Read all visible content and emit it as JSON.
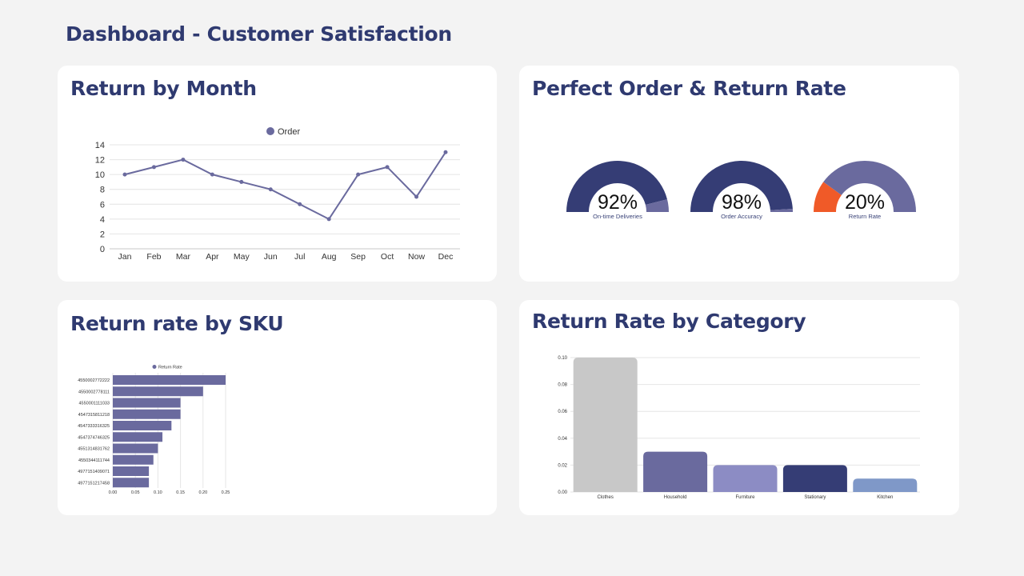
{
  "page": {
    "title": "Dashboard - Customer Satisfaction"
  },
  "colors": {
    "title": "#2f3a70",
    "line": "#6a6a9e",
    "sku_bar": "#6a6a9e",
    "gauge_fill": "#353d75",
    "gauge_rest": "#6a6a9e",
    "return_rate_fill": "#f05a28",
    "category_colors": [
      "#c8c8c8",
      "#6a6a9e",
      "#8c8cc4",
      "#353d75",
      "#7f98c8"
    ]
  },
  "cards": {
    "return_by_month": {
      "title": "Return by Month"
    },
    "perfect_order": {
      "title": "Perfect Order & Return Rate"
    },
    "return_by_sku": {
      "title": "Return rate by SKU"
    },
    "return_by_category": {
      "title": "Return Rate by Category"
    }
  },
  "chart_data": [
    {
      "id": "return_by_month",
      "type": "line",
      "categories": [
        "Jan",
        "Feb",
        "Mar",
        "Apr",
        "May",
        "Jun",
        "Jul",
        "Aug",
        "Sep",
        "Oct",
        "Now",
        "Dec"
      ],
      "series": [
        {
          "name": "Order",
          "values": [
            10,
            11,
            12,
            10,
            9,
            8,
            6,
            4,
            10,
            11,
            7,
            13
          ]
        }
      ],
      "ylim": [
        0,
        14
      ],
      "yticks": [
        0,
        2,
        4,
        6,
        8,
        10,
        12,
        14
      ],
      "grid": true,
      "legend": "top-center"
    },
    {
      "id": "perfect_order",
      "type": "gauge",
      "gauges": [
        {
          "label": "On-time Deliveries",
          "value_text": "92%",
          "value": 0.92
        },
        {
          "label": "Order Accuracy",
          "value_text": "98%",
          "value": 0.98
        },
        {
          "label": "Return Rate",
          "value_text": "20%",
          "value": 0.2
        }
      ]
    },
    {
      "id": "return_by_sku",
      "type": "bar",
      "orientation": "horizontal",
      "series": [
        {
          "name": "Return Rate",
          "values": [
            0.25,
            0.2,
            0.15,
            0.15,
            0.13,
            0.11,
            0.1,
            0.09,
            0.08,
            0.08
          ]
        }
      ],
      "categories": [
        "4550002772222",
        "4550002778111",
        "4550001111033",
        "4547315811218",
        "4547333316325",
        "4547374746325",
        "4551314831762",
        "4550344111744",
        "4977151409071",
        "4977151217458"
      ],
      "xlim": [
        0,
        0.25
      ],
      "xticks": [
        "0.00",
        "0.05",
        "0.10",
        "0.15",
        "0.20",
        "0.25"
      ],
      "legend": "top-center"
    },
    {
      "id": "return_by_category",
      "type": "bar",
      "categories": [
        "Clothes",
        "Household",
        "Furniture",
        "Stationary",
        "Kitchen"
      ],
      "values": [
        0.1,
        0.03,
        0.02,
        0.02,
        0.01
      ],
      "ylim": [
        0,
        0.1
      ],
      "yticks": [
        "0.00",
        "0.02",
        "0.04",
        "0.06",
        "0.08",
        "0.10"
      ],
      "grid": true
    }
  ]
}
